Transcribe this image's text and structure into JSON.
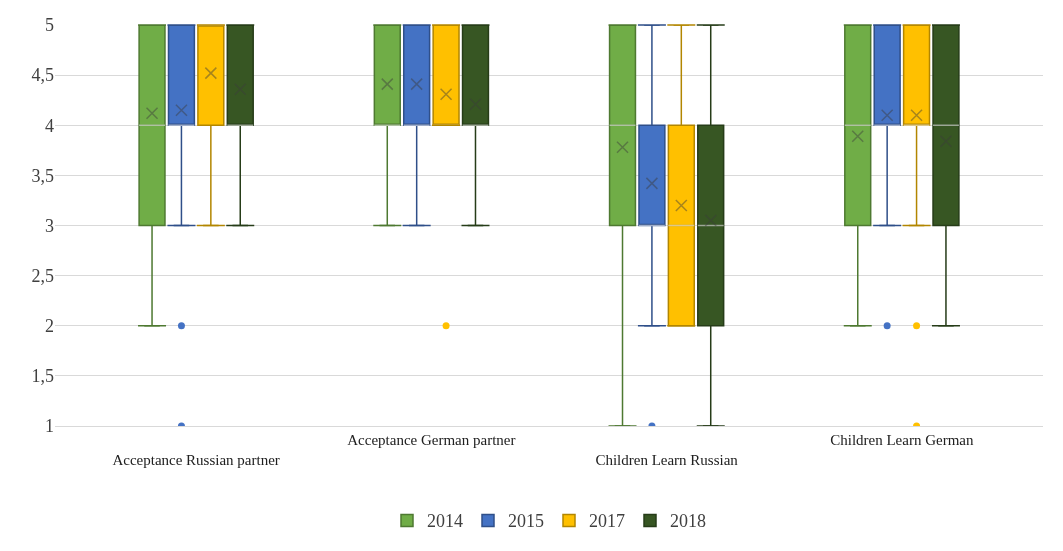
{
  "chart_data": {
    "type": "box",
    "categories": [
      "Acceptance Russian partner",
      "Acceptance German partner",
      "Children Learn Russian",
      "Children Learn German"
    ],
    "ylim": [
      1,
      5
    ],
    "yticks": [
      1,
      {
        "value": 1.5,
        "label": "1,5"
      },
      2,
      {
        "value": 2.5,
        "label": "2,5"
      },
      3,
      {
        "value": 3.5,
        "label": "3,5"
      },
      4,
      {
        "value": 4.5,
        "label": "4,5"
      },
      5
    ],
    "grid": "y",
    "legend": "bottom",
    "series": [
      {
        "name": "2014",
        "color": "#70ad47",
        "boxes": [
          {
            "low": 2,
            "q1": 3,
            "median": 4,
            "q3": 5,
            "high": 5,
            "mean": 4.12
          },
          {
            "low": 3,
            "q1": 4,
            "median": 4,
            "q3": 5,
            "high": 5,
            "mean": 4.41
          },
          {
            "low": 1,
            "q1": 3,
            "median": 4,
            "q3": 5,
            "high": 5,
            "mean": 3.78
          },
          {
            "low": 2,
            "q1": 3,
            "median": 4,
            "q3": 5,
            "high": 5,
            "mean": 3.89
          }
        ]
      },
      {
        "name": "2015",
        "color": "#4472c4",
        "boxes": [
          {
            "low": 3,
            "q1": 4,
            "median": 4,
            "q3": 5,
            "high": 5,
            "mean": 4.15,
            "outliers": [
              2,
              1
            ]
          },
          {
            "low": 3,
            "q1": 4,
            "median": 4,
            "q3": 5,
            "high": 5,
            "mean": 4.41
          },
          {
            "low": 2,
            "q1": 3,
            "median": 3,
            "q3": 4,
            "high": 5,
            "mean": 3.42,
            "outliers": [
              1
            ]
          },
          {
            "low": 3,
            "q1": 4,
            "median": 4,
            "q3": 5,
            "high": 5,
            "mean": 4.1,
            "outliers": [
              2
            ]
          }
        ]
      },
      {
        "name": "2017",
        "color": "#ffc000",
        "boxes": [
          {
            "low": 3,
            "q1": 4,
            "median": 5,
            "q3": 5,
            "high": 5,
            "mean": 4.52
          },
          {
            "low": 4,
            "q1": 4,
            "median": 4,
            "q3": 5,
            "high": 5,
            "mean": 4.31,
            "outliers": [
              2
            ]
          },
          {
            "low": 2,
            "q1": 2,
            "median": 3,
            "q3": 4,
            "high": 5,
            "mean": 3.2
          },
          {
            "low": 3,
            "q1": 4,
            "median": 4,
            "q3": 5,
            "high": 5,
            "mean": 4.1,
            "outliers": [
              2,
              1
            ]
          }
        ]
      },
      {
        "name": "2018",
        "color": "#375623",
        "boxes": [
          {
            "low": 3,
            "q1": 4,
            "median": 4,
            "q3": 5,
            "high": 5,
            "mean": 4.36
          },
          {
            "low": 3,
            "q1": 4,
            "median": 4,
            "q3": 5,
            "high": 5,
            "mean": 4.21
          },
          {
            "low": 1,
            "q1": 2,
            "median": 3,
            "q3": 4,
            "high": 5,
            "mean": 3.05
          },
          {
            "low": 2,
            "q1": 3,
            "median": 4,
            "q3": 5,
            "high": 5,
            "mean": 3.84
          }
        ]
      }
    ]
  }
}
